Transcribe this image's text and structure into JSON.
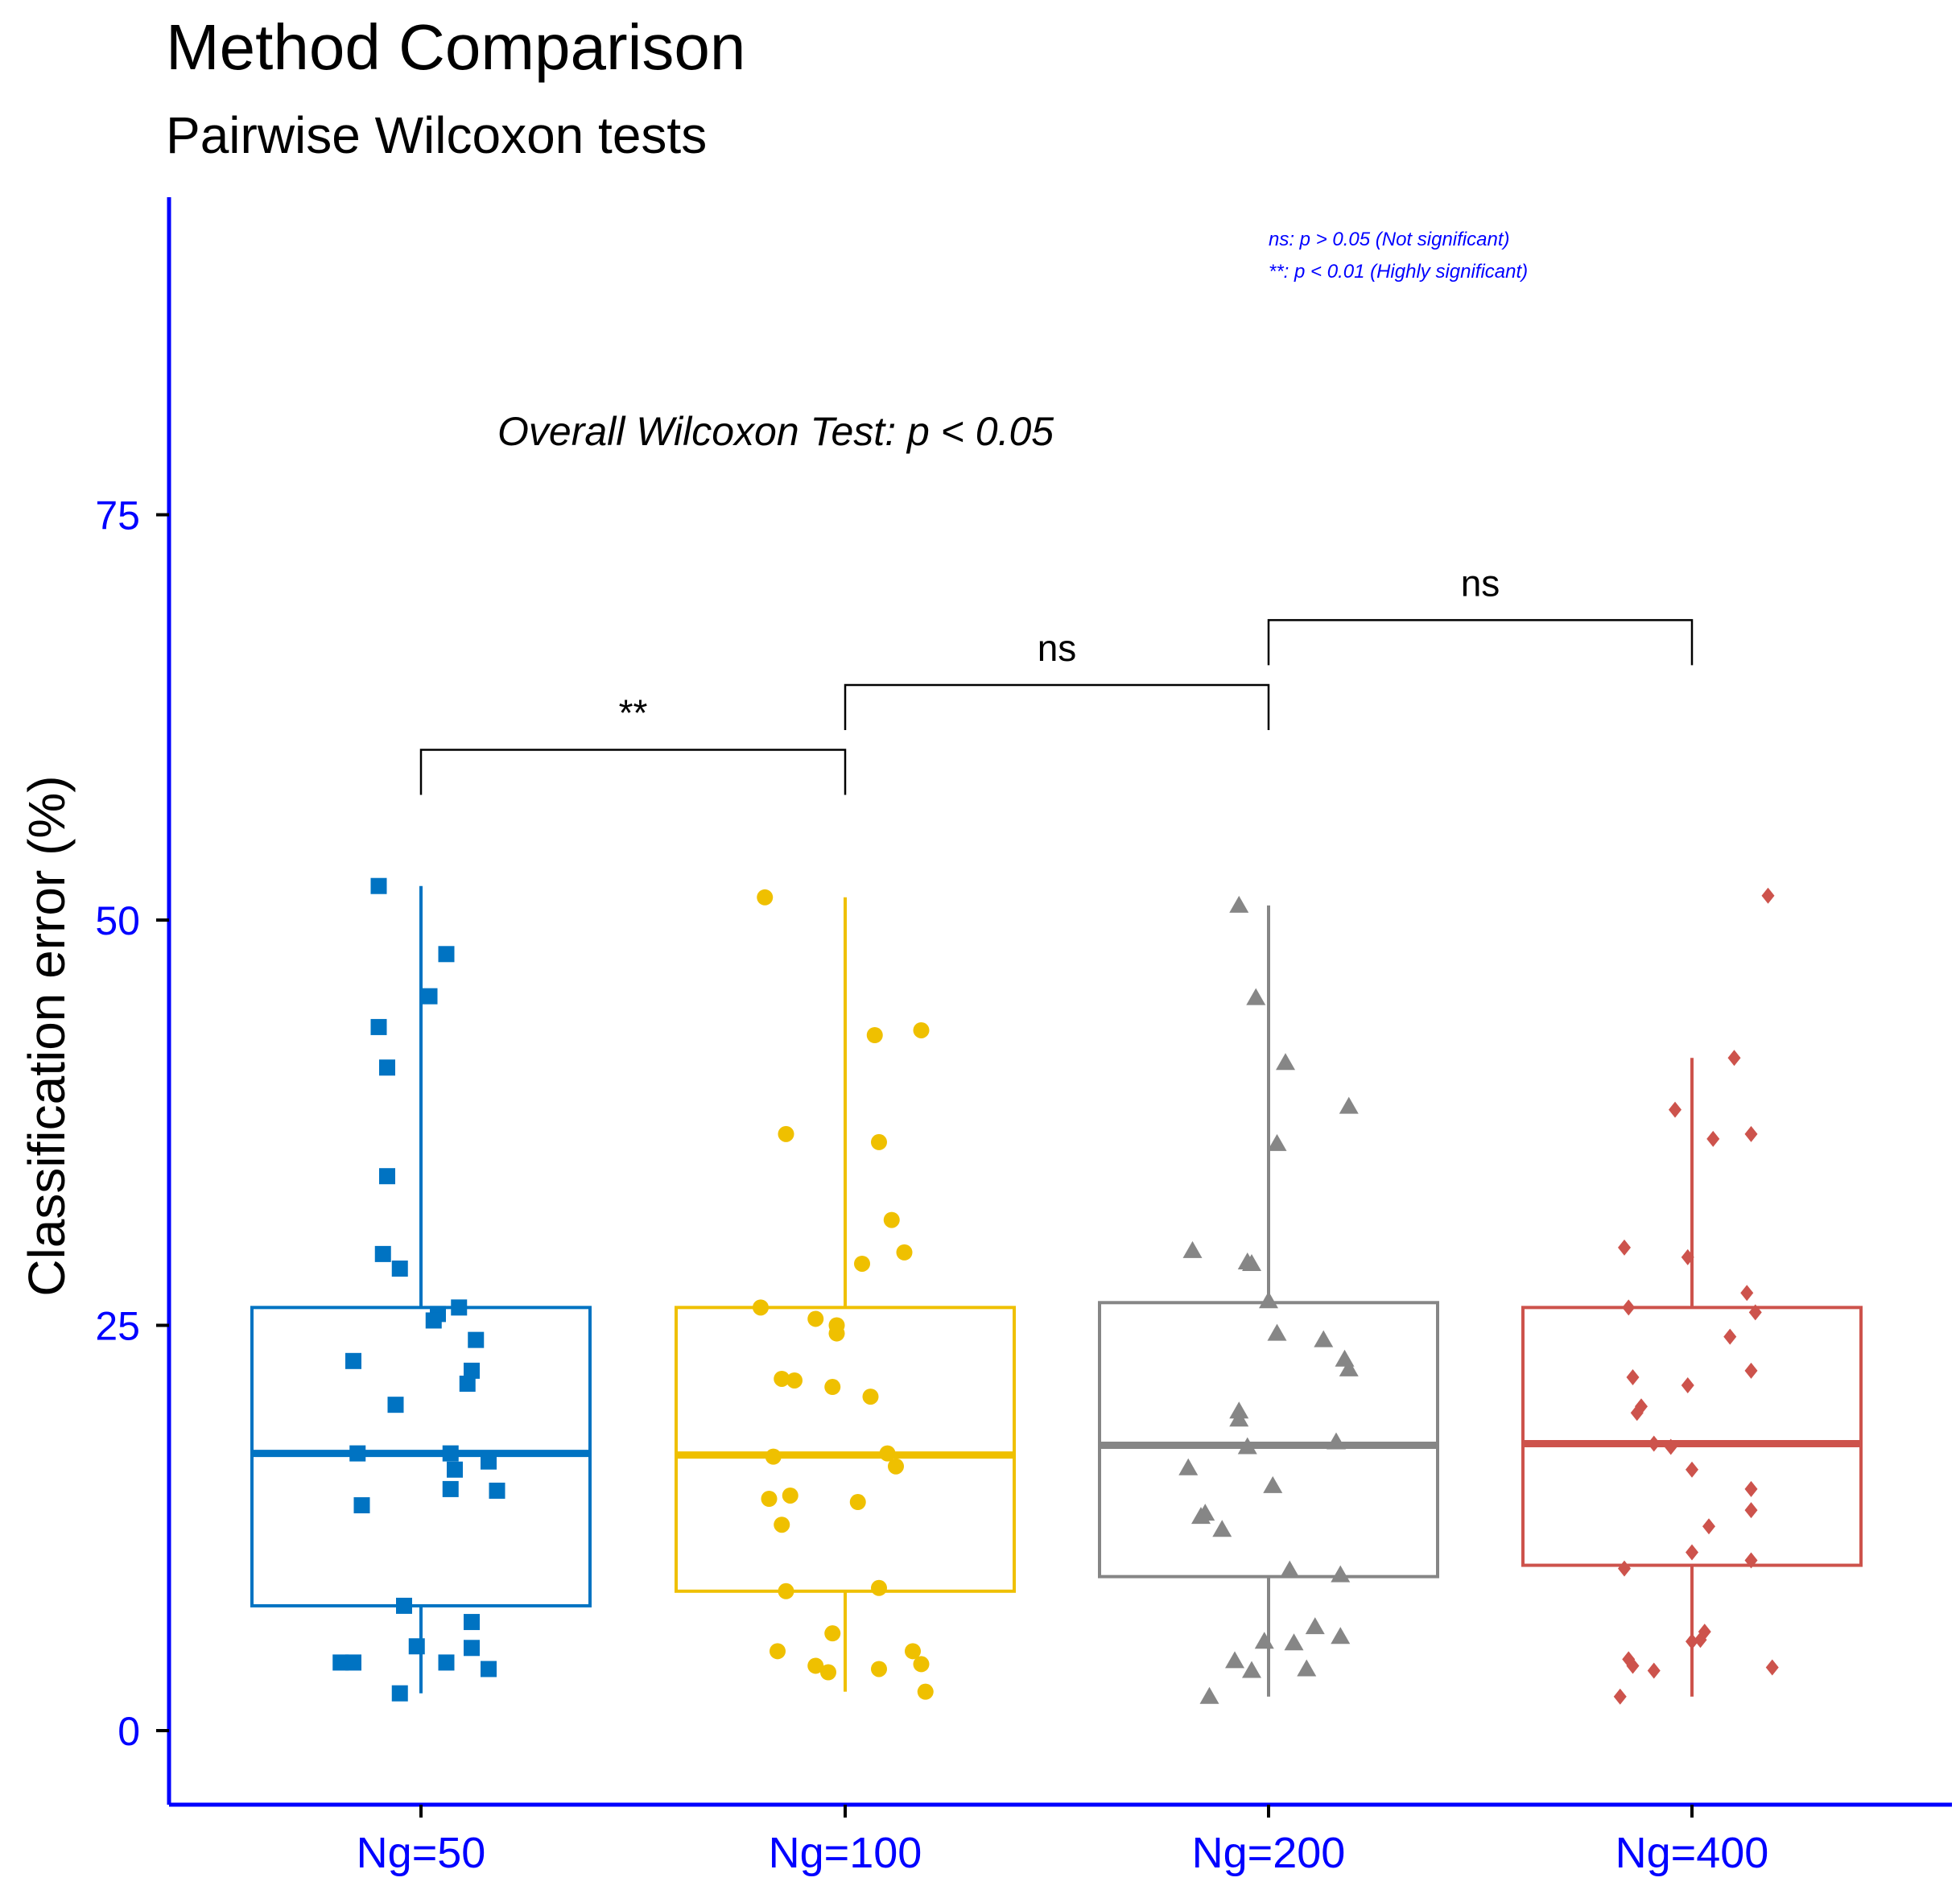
{
  "chart_data": {
    "type": "boxplot",
    "title": "Method Comparison",
    "subtitle": "Pairwise Wilcoxon tests",
    "xlabel": "",
    "ylabel": "Classification error (%)",
    "ylim": [
      -4,
      95
    ],
    "yticks": [
      0,
      25,
      50,
      75
    ],
    "ytick_labels": [
      "0",
      "25",
      "50",
      "75"
    ],
    "categories": [
      "Ng=50",
      "Ng=100",
      "Ng=200",
      "Ng=400"
    ],
    "series": [
      {
        "name": "Ng=50",
        "color": "#0073C2",
        "marker": "square",
        "box": {
          "q1": 7.7,
          "median": 17.1,
          "q3": 26.1,
          "whisker_low": 2.3,
          "whisker_high": 52.1
        },
        "points": [
          {
            "x": -0.1,
            "y": 52.1
          },
          {
            "x": 0.06,
            "y": 47.9
          },
          {
            "x": 0.02,
            "y": 45.3
          },
          {
            "x": -0.1,
            "y": 43.4
          },
          {
            "x": -0.08,
            "y": 40.9
          },
          {
            "x": -0.08,
            "y": 34.2
          },
          {
            "x": -0.09,
            "y": 29.4
          },
          {
            "x": -0.05,
            "y": 28.5
          },
          {
            "x": 0.09,
            "y": 26.1
          },
          {
            "x": 0.04,
            "y": 25.7
          },
          {
            "x": 0.03,
            "y": 25.3
          },
          {
            "x": 0.13,
            "y": 24.1
          },
          {
            "x": -0.16,
            "y": 22.8
          },
          {
            "x": 0.12,
            "y": 22.2
          },
          {
            "x": 0.11,
            "y": 21.4
          },
          {
            "x": -0.06,
            "y": 20.1
          },
          {
            "x": -0.15,
            "y": 17.1
          },
          {
            "x": 0.07,
            "y": 17.1
          },
          {
            "x": 0.16,
            "y": 16.6
          },
          {
            "x": 0.08,
            "y": 16.1
          },
          {
            "x": 0.07,
            "y": 14.9
          },
          {
            "x": 0.18,
            "y": 14.8
          },
          {
            "x": -0.14,
            "y": 13.9
          },
          {
            "x": -0.04,
            "y": 7.7
          },
          {
            "x": 0.12,
            "y": 6.7
          },
          {
            "x": -0.01,
            "y": 5.2
          },
          {
            "x": 0.12,
            "y": 5.1
          },
          {
            "x": 0.06,
            "y": 4.2
          },
          {
            "x": -0.19,
            "y": 4.2
          },
          {
            "x": -0.16,
            "y": 4.2
          },
          {
            "x": 0.16,
            "y": 3.8
          },
          {
            "x": -0.05,
            "y": 2.3
          }
        ]
      },
      {
        "name": "Ng=100",
        "color": "#EFC000",
        "marker": "circle",
        "box": {
          "q1": 8.6,
          "median": 17.0,
          "q3": 26.1,
          "whisker_low": 2.4,
          "whisker_high": 51.4
        },
        "points": [
          {
            "x": -0.19,
            "y": 51.4
          },
          {
            "x": 0.18,
            "y": 43.2
          },
          {
            "x": 0.07,
            "y": 42.9
          },
          {
            "x": -0.14,
            "y": 36.8
          },
          {
            "x": 0.08,
            "y": 36.3
          },
          {
            "x": 0.11,
            "y": 31.5
          },
          {
            "x": 0.14,
            "y": 29.5
          },
          {
            "x": 0.04,
            "y": 28.8
          },
          {
            "x": -0.2,
            "y": 26.1
          },
          {
            "x": -0.07,
            "y": 25.4
          },
          {
            "x": -0.02,
            "y": 25.0
          },
          {
            "x": -0.02,
            "y": 24.5
          },
          {
            "x": -0.15,
            "y": 21.7
          },
          {
            "x": -0.12,
            "y": 21.6
          },
          {
            "x": -0.03,
            "y": 21.2
          },
          {
            "x": 0.06,
            "y": 20.6
          },
          {
            "x": 0.1,
            "y": 17.1
          },
          {
            "x": -0.17,
            "y": 16.9
          },
          {
            "x": 0.12,
            "y": 16.3
          },
          {
            "x": -0.13,
            "y": 14.5
          },
          {
            "x": -0.18,
            "y": 14.3
          },
          {
            "x": 0.03,
            "y": 14.1
          },
          {
            "x": -0.15,
            "y": 12.7
          },
          {
            "x": -0.14,
            "y": 8.6
          },
          {
            "x": 0.08,
            "y": 8.8
          },
          {
            "x": -0.03,
            "y": 6.0
          },
          {
            "x": -0.16,
            "y": 4.9
          },
          {
            "x": 0.16,
            "y": 4.9
          },
          {
            "x": -0.07,
            "y": 4.0
          },
          {
            "x": 0.08,
            "y": 3.8
          },
          {
            "x": -0.04,
            "y": 3.6
          },
          {
            "x": 0.18,
            "y": 4.1
          },
          {
            "x": 0.19,
            "y": 2.4
          }
        ]
      },
      {
        "name": "Ng=200",
        "color": "#868686",
        "marker": "triangle",
        "box": {
          "q1": 9.5,
          "median": 17.6,
          "q3": 26.4,
          "whisker_low": 2.1,
          "whisker_high": 50.9
        },
        "points": [
          {
            "x": -0.07,
            "y": 50.9
          },
          {
            "x": -0.03,
            "y": 45.2
          },
          {
            "x": 0.04,
            "y": 41.2
          },
          {
            "x": 0.19,
            "y": 38.5
          },
          {
            "x": 0.02,
            "y": 36.2
          },
          {
            "x": -0.18,
            "y": 29.6
          },
          {
            "x": -0.05,
            "y": 28.9
          },
          {
            "x": -0.04,
            "y": 28.8
          },
          {
            "x": 0,
            "y": 26.5
          },
          {
            "x": 0.02,
            "y": 24.5
          },
          {
            "x": 0.13,
            "y": 24.1
          },
          {
            "x": 0.18,
            "y": 22.9
          },
          {
            "x": 0.19,
            "y": 22.3
          },
          {
            "x": -0.07,
            "y": 19.7
          },
          {
            "x": -0.07,
            "y": 19.2
          },
          {
            "x": -0.05,
            "y": 17.5
          },
          {
            "x": 0.16,
            "y": 17.8
          },
          {
            "x": -0.19,
            "y": 16.2
          },
          {
            "x": 0.01,
            "y": 15.1
          },
          {
            "x": -0.15,
            "y": 13.4
          },
          {
            "x": -0.16,
            "y": 13.2
          },
          {
            "x": -0.11,
            "y": 12.4
          },
          {
            "x": 0.05,
            "y": 9.9
          },
          {
            "x": 0.17,
            "y": 9.6
          },
          {
            "x": 0.11,
            "y": 6.4
          },
          {
            "x": 0.17,
            "y": 5.8
          },
          {
            "x": -0.01,
            "y": 5.5
          },
          {
            "x": 0.06,
            "y": 5.4
          },
          {
            "x": -0.08,
            "y": 4.3
          },
          {
            "x": 0.09,
            "y": 3.8
          },
          {
            "x": -0.04,
            "y": 3.7
          },
          {
            "x": -0.14,
            "y": 2.1
          }
        ]
      },
      {
        "name": "Ng=400",
        "color": "#CD534C",
        "marker": "diamond",
        "box": {
          "q1": 10.2,
          "median": 17.7,
          "q3": 26.1,
          "whisker_low": 2.1,
          "whisker_high": 41.5
        },
        "points": [
          {
            "x": 0.18,
            "y": 51.5
          },
          {
            "x": 0.1,
            "y": 41.5
          },
          {
            "x": -0.04,
            "y": 38.3
          },
          {
            "x": 0.05,
            "y": 36.5
          },
          {
            "x": 0.14,
            "y": 36.8
          },
          {
            "x": -0.16,
            "y": 29.8
          },
          {
            "x": -0.01,
            "y": 29.2
          },
          {
            "x": 0.13,
            "y": 27.0
          },
          {
            "x": -0.15,
            "y": 26.1
          },
          {
            "x": 0.15,
            "y": 25.8
          },
          {
            "x": 0.09,
            "y": 24.3
          },
          {
            "x": 0.14,
            "y": 22.2
          },
          {
            "x": -0.14,
            "y": 21.8
          },
          {
            "x": -0.01,
            "y": 21.3
          },
          {
            "x": -0.12,
            "y": 20.0
          },
          {
            "x": -0.13,
            "y": 19.6
          },
          {
            "x": -0.05,
            "y": 17.5
          },
          {
            "x": -0.09,
            "y": 17.7
          },
          {
            "x": 0,
            "y": 16.1
          },
          {
            "x": 0.14,
            "y": 14.9
          },
          {
            "x": 0.14,
            "y": 13.6
          },
          {
            "x": 0.04,
            "y": 12.6
          },
          {
            "x": -0.16,
            "y": 10.0
          },
          {
            "x": 0,
            "y": 11.0
          },
          {
            "x": 0.14,
            "y": 10.5
          },
          {
            "x": 0.03,
            "y": 6.1
          },
          {
            "x": 0.02,
            "y": 5.6
          },
          {
            "x": 0,
            "y": 5.5
          },
          {
            "x": -0.15,
            "y": 4.4
          },
          {
            "x": -0.14,
            "y": 4.0
          },
          {
            "x": -0.09,
            "y": 3.7
          },
          {
            "x": 0.19,
            "y": 3.9
          },
          {
            "x": -0.17,
            "y": 2.1
          }
        ]
      }
    ],
    "comparisons": [
      {
        "from": 0,
        "to": 1,
        "y": 60.5,
        "label": "**"
      },
      {
        "from": 1,
        "to": 2,
        "y": 64.5,
        "label": "ns"
      },
      {
        "from": 2,
        "to": 3,
        "y": 68.5,
        "label": "ns"
      }
    ],
    "annotations": {
      "overall_test": "Overall Wilcoxon Test: p < 0.05",
      "legend_lines": [
        "ns: p > 0.05 (Not significant)",
        "**: p < 0.01 (Highly significant)"
      ]
    },
    "axis_color": "#0000ff"
  }
}
